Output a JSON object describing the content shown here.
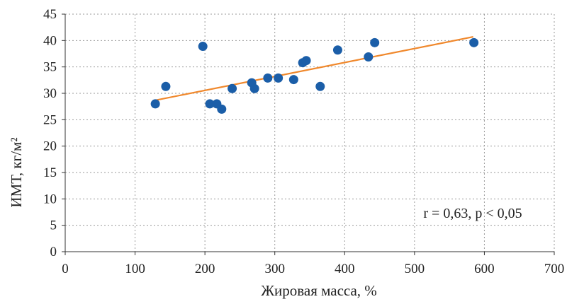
{
  "chart_data": {
    "type": "scatter",
    "xlabel": "Жировая масса, %",
    "ylabel": "ИМТ, кг/м²",
    "xlim": [
      0,
      700
    ],
    "ylim": [
      0,
      45
    ],
    "xticks": [
      0,
      100,
      200,
      300,
      400,
      500,
      600,
      700
    ],
    "yticks": [
      0,
      5,
      10,
      15,
      20,
      25,
      30,
      35,
      40,
      45
    ],
    "grid": true,
    "grid_style": "dotted",
    "points": [
      {
        "x": 129,
        "y": 28.0
      },
      {
        "x": 144,
        "y": 31.3
      },
      {
        "x": 197,
        "y": 38.9
      },
      {
        "x": 207,
        "y": 28.0
      },
      {
        "x": 217,
        "y": 28.0
      },
      {
        "x": 224,
        "y": 27.0
      },
      {
        "x": 239,
        "y": 30.9
      },
      {
        "x": 267,
        "y": 32.0
      },
      {
        "x": 271,
        "y": 30.9
      },
      {
        "x": 290,
        "y": 32.9
      },
      {
        "x": 305,
        "y": 32.9
      },
      {
        "x": 327,
        "y": 32.6
      },
      {
        "x": 340,
        "y": 35.8
      },
      {
        "x": 345,
        "y": 36.2
      },
      {
        "x": 365,
        "y": 31.3
      },
      {
        "x": 390,
        "y": 38.2
      },
      {
        "x": 434,
        "y": 36.9
      },
      {
        "x": 443,
        "y": 39.6
      },
      {
        "x": 585,
        "y": 39.6
      }
    ],
    "trendline": {
      "x1": 126,
      "y1": 28.6,
      "x2": 584,
      "y2": 40.7
    },
    "annotation": "r = 0,63, p < 0,05",
    "colors": {
      "points": "#1b5ea8",
      "trendline": "#f0882c",
      "grid": "#9a9a9a",
      "axis": "#333333",
      "text": "#222222"
    }
  }
}
